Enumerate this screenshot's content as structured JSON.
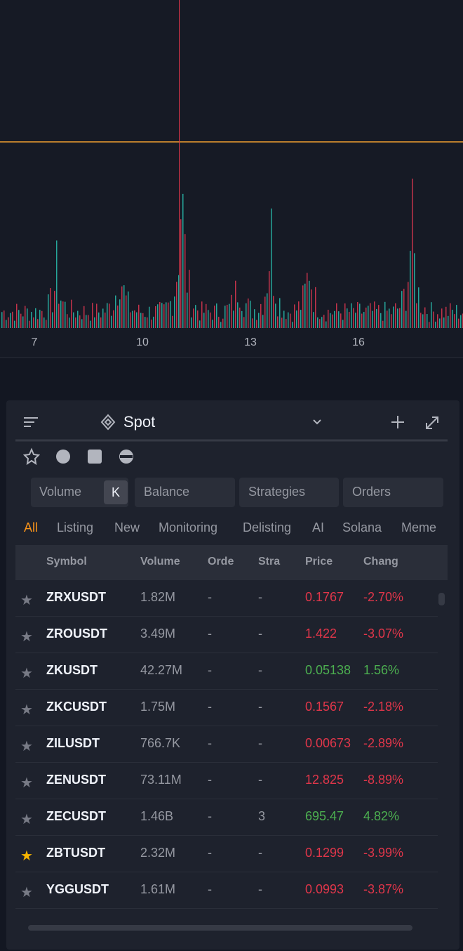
{
  "chart": {
    "x_ticks": [
      "7",
      "10",
      "13",
      "16"
    ]
  },
  "panel": {
    "market": "Spot",
    "tabs": [
      "Volume",
      "K",
      "Balance",
      "Strategies",
      "Orders"
    ],
    "categories": [
      "All",
      "Listing",
      "New",
      "Monitoring",
      "Delisting",
      "AI",
      "Solana",
      "Meme"
    ],
    "columns": [
      "Symbol",
      "Volume",
      "Orde",
      "Stra",
      "Price",
      "Chang"
    ],
    "rows": [
      {
        "symbol": "ZRXUSDT",
        "volume": "1.82M",
        "orders": "-",
        "strategies": "-",
        "price": "0.1767",
        "change": "-2.70%",
        "trend": "down",
        "starred": false
      },
      {
        "symbol": "ZROUSDT",
        "volume": "3.49M",
        "orders": "-",
        "strategies": "-",
        "price": "1.422",
        "change": "-3.07%",
        "trend": "down",
        "starred": false
      },
      {
        "symbol": "ZKUSDT",
        "volume": "42.27M",
        "orders": "-",
        "strategies": "-",
        "price": "0.05138",
        "change": "1.56%",
        "trend": "up",
        "starred": false
      },
      {
        "symbol": "ZKCUSDT",
        "volume": "1.75M",
        "orders": "-",
        "strategies": "-",
        "price": "0.1567",
        "change": "-2.18%",
        "trend": "down",
        "starred": false
      },
      {
        "symbol": "ZILUSDT",
        "volume": "766.7K",
        "orders": "-",
        "strategies": "-",
        "price": "0.00673",
        "change": "-2.89%",
        "trend": "down",
        "starred": false
      },
      {
        "symbol": "ZENUSDT",
        "volume": "73.11M",
        "orders": "-",
        "strategies": "-",
        "price": "12.825",
        "change": "-8.89%",
        "trend": "down",
        "starred": false
      },
      {
        "symbol": "ZECUSDT",
        "volume": "1.46B",
        "orders": "-",
        "strategies": "3",
        "price": "695.47",
        "change": "4.82%",
        "trend": "up",
        "starred": false
      },
      {
        "symbol": "ZBTUSDT",
        "volume": "2.32M",
        "orders": "-",
        "strategies": "-",
        "price": "0.1299",
        "change": "-3.99%",
        "trend": "down",
        "starred": true
      },
      {
        "symbol": "YGGUSDT",
        "volume": "1.61M",
        "orders": "-",
        "strategies": "-",
        "price": "0.0993",
        "change": "-3.87%",
        "trend": "down",
        "starred": false
      }
    ]
  }
}
